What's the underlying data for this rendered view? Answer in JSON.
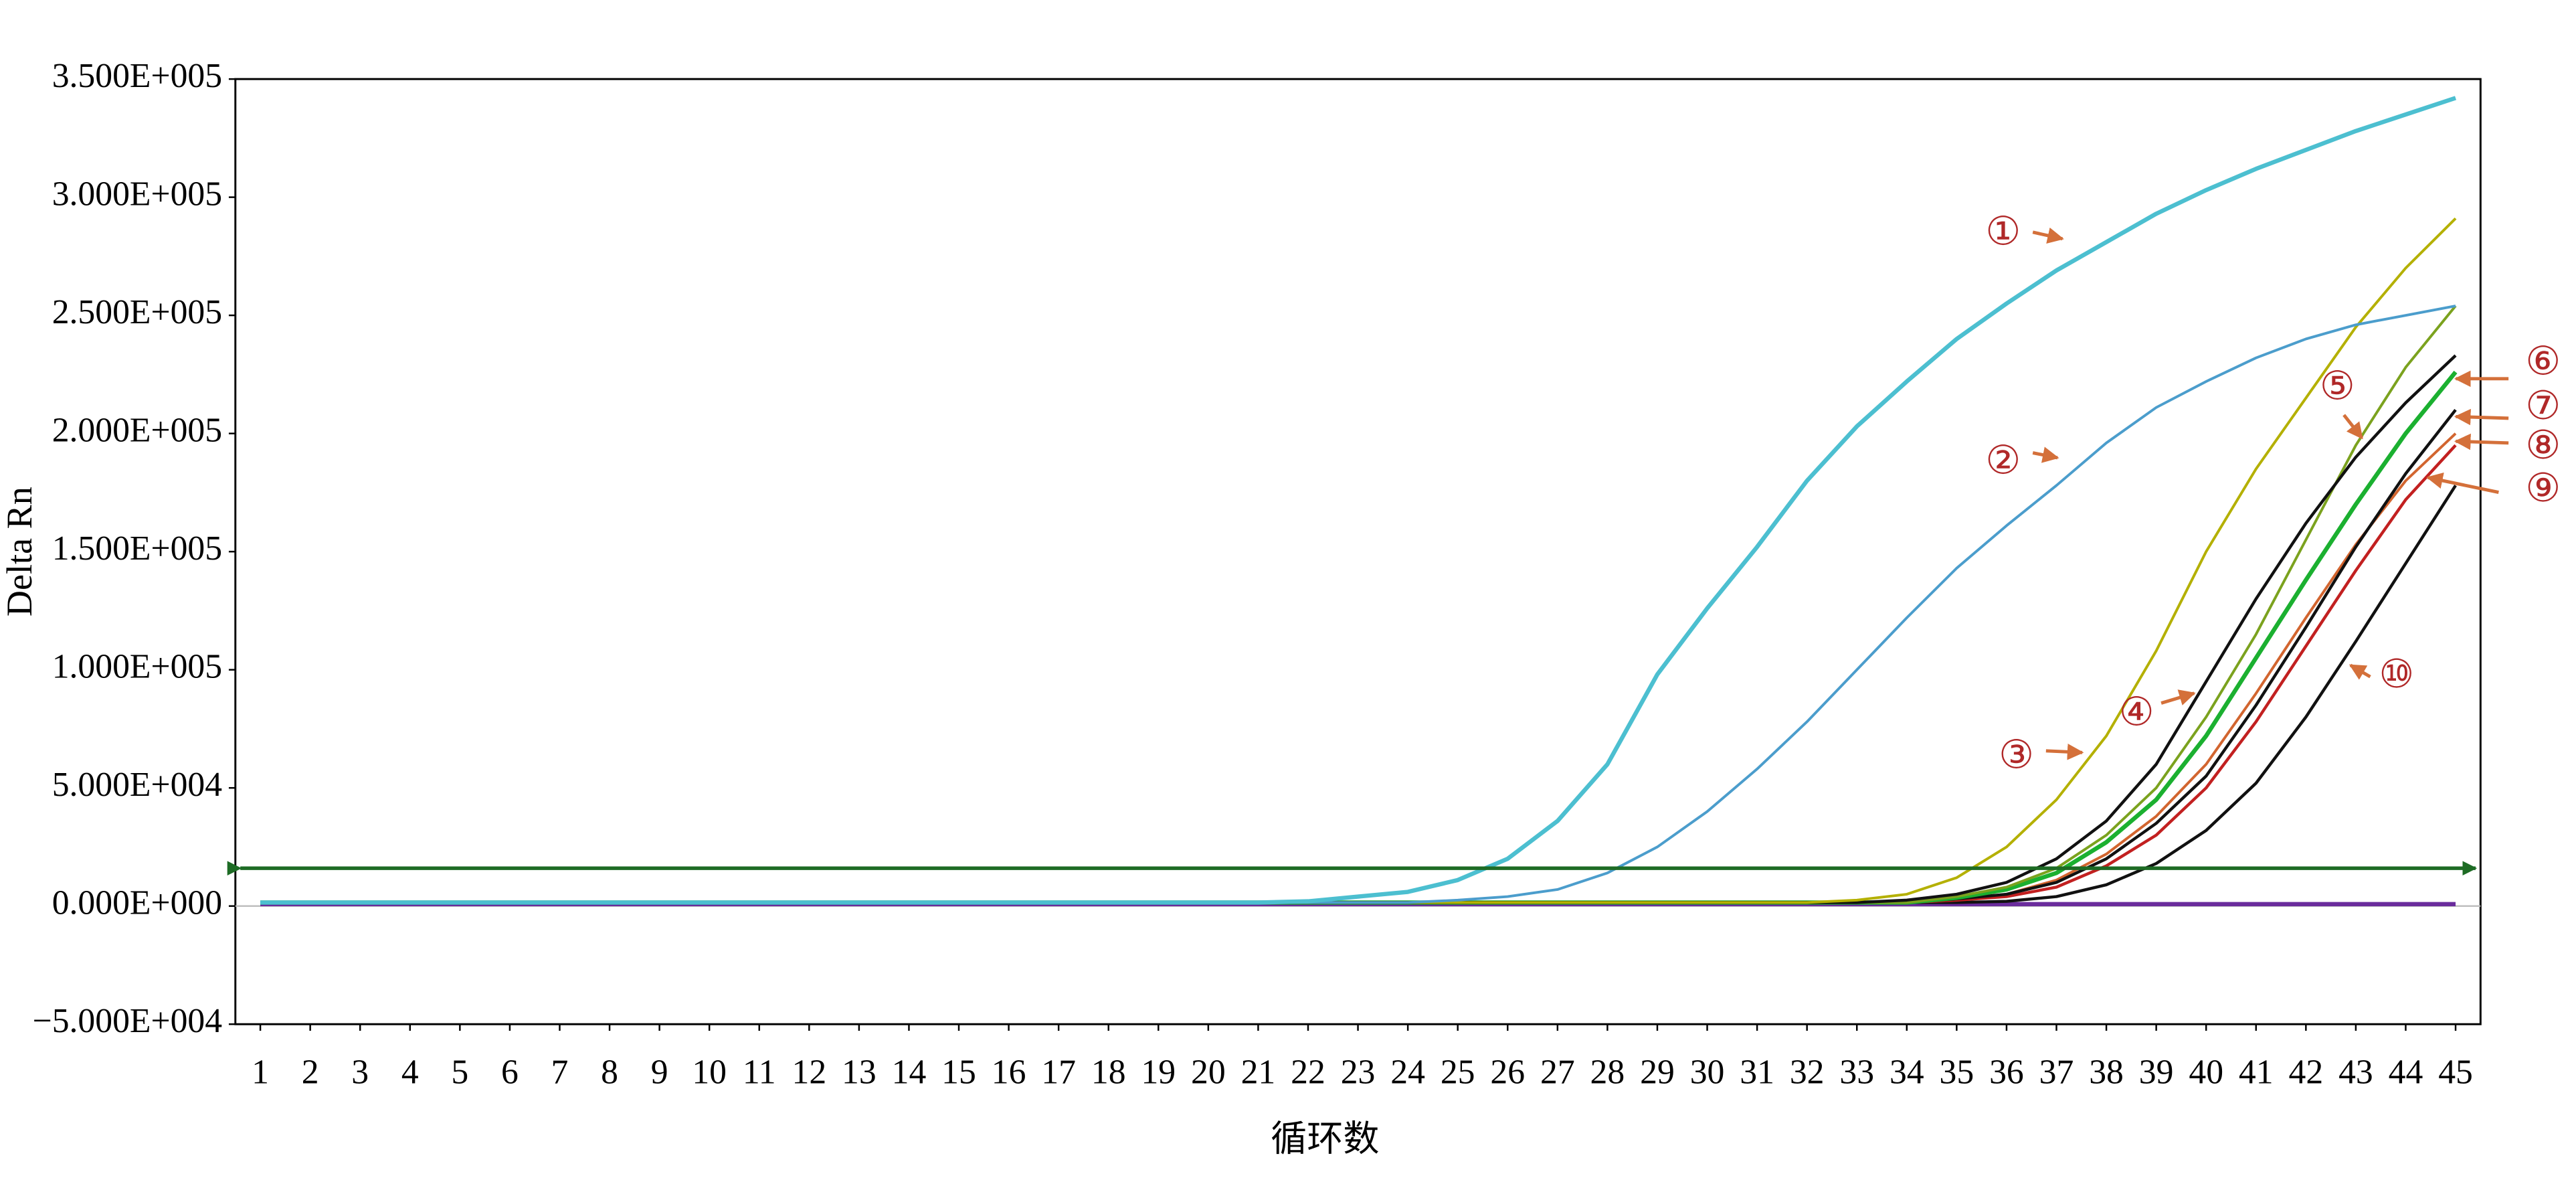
{
  "chart_data": {
    "type": "line",
    "ylabel": "Delta Rn",
    "xlabel": "循环数",
    "x": [
      1,
      2,
      3,
      4,
      5,
      6,
      7,
      8,
      9,
      10,
      11,
      12,
      13,
      14,
      15,
      16,
      17,
      18,
      19,
      20,
      21,
      22,
      23,
      24,
      25,
      26,
      27,
      28,
      29,
      30,
      31,
      32,
      33,
      34,
      35,
      36,
      37,
      38,
      39,
      40,
      41,
      42,
      43,
      44,
      45
    ],
    "xlim": [
      0.5,
      45.5
    ],
    "xticks": [
      1,
      2,
      3,
      4,
      5,
      6,
      7,
      8,
      9,
      10,
      11,
      12,
      13,
      14,
      15,
      16,
      17,
      18,
      19,
      20,
      21,
      22,
      23,
      24,
      25,
      26,
      27,
      28,
      29,
      30,
      31,
      32,
      33,
      34,
      35,
      36,
      37,
      38,
      39,
      40,
      41,
      42,
      43,
      44,
      45
    ],
    "ylim": [
      -50000,
      350000
    ],
    "yticks": [
      {
        "value": -50000,
        "label": "−5.000E+004"
      },
      {
        "value": 0,
        "label": "0.000E+000"
      },
      {
        "value": 50000,
        "label": "5.000E+004"
      },
      {
        "value": 100000,
        "label": "1.000E+005"
      },
      {
        "value": 150000,
        "label": "1.500E+005"
      },
      {
        "value": 200000,
        "label": "2.000E+005"
      },
      {
        "value": 250000,
        "label": "2.500E+005"
      },
      {
        "value": 300000,
        "label": "3.000E+005"
      },
      {
        "value": 350000,
        "label": "3.500E+005"
      }
    ],
    "threshold": 16000,
    "threshold_color": "#1d6b24",
    "series": [
      {
        "name": "①",
        "color": "#4cbfd0",
        "width": 2.6,
        "values": [
          1500,
          1500,
          1500,
          1500,
          1500,
          1500,
          1500,
          1500,
          1500,
          1500,
          1500,
          1500,
          1500,
          1500,
          1500,
          1500,
          1500,
          1500,
          1500,
          1500,
          1500,
          2000,
          4000,
          6000,
          11000,
          20000,
          36000,
          60000,
          98000,
          126000,
          152000,
          180000,
          203000,
          222000,
          240000,
          255000,
          269000,
          281000,
          293000,
          303000,
          312000,
          320000,
          328000,
          335000,
          342000
        ]
      },
      {
        "name": "②",
        "color": "#4b9dcc",
        "width": 1.6,
        "values": [
          1500,
          1500,
          1500,
          1500,
          1500,
          1500,
          1500,
          1500,
          1500,
          1500,
          1500,
          1500,
          1500,
          1500,
          1500,
          1500,
          1500,
          1500,
          1500,
          1500,
          1500,
          1500,
          1500,
          1500,
          2500,
          4000,
          7000,
          14000,
          25000,
          40000,
          58000,
          78000,
          100000,
          122000,
          143000,
          161000,
          178000,
          196000,
          211000,
          222000,
          232000,
          240000,
          246000,
          250000,
          254000
        ]
      },
      {
        "name": "③",
        "color": "#b4b000",
        "width": 1.6,
        "values": [
          1500,
          1500,
          1500,
          1500,
          1500,
          1500,
          1500,
          1500,
          1500,
          1500,
          1500,
          1500,
          1500,
          1500,
          1500,
          1500,
          1500,
          1500,
          1500,
          1500,
          1500,
          1500,
          1500,
          1500,
          1500,
          1500,
          1500,
          1500,
          1500,
          1500,
          1500,
          1500,
          2500,
          5000,
          12000,
          25000,
          45000,
          72000,
          108000,
          150000,
          185000,
          215000,
          245000,
          270000,
          291000
        ]
      },
      {
        "name": "④",
        "color": "#111111",
        "width": 1.8,
        "values": [
          1500,
          1500,
          1500,
          1500,
          1500,
          1500,
          1500,
          1500,
          1500,
          1500,
          1500,
          1500,
          1500,
          1500,
          1500,
          1500,
          1500,
          1500,
          1500,
          1500,
          1500,
          1500,
          1500,
          1500,
          1500,
          1500,
          1500,
          1500,
          1500,
          1500,
          1500,
          1500,
          1500,
          2500,
          5000,
          10000,
          20000,
          36000,
          60000,
          95000,
          130000,
          162000,
          190000,
          213000,
          233000
        ]
      },
      {
        "name": "⑤",
        "color": "#7ba21e",
        "width": 1.6,
        "values": [
          1500,
          1500,
          1500,
          1500,
          1500,
          1500,
          1500,
          1500,
          1500,
          1500,
          1500,
          1500,
          1500,
          1500,
          1500,
          1500,
          1500,
          1500,
          1500,
          1500,
          1500,
          1500,
          1500,
          1500,
          1500,
          1500,
          1500,
          1500,
          1500,
          1500,
          1500,
          1500,
          1500,
          1500,
          4000,
          8000,
          16000,
          30000,
          50000,
          80000,
          115000,
          155000,
          195000,
          228000,
          254000
        ]
      },
      {
        "name": "⑥",
        "color": "#1bb030",
        "width": 2.6,
        "values": [
          1500,
          1500,
          1500,
          1500,
          1500,
          1500,
          1500,
          1500,
          1500,
          1500,
          1500,
          1500,
          1500,
          1500,
          1500,
          1500,
          1500,
          1500,
          1500,
          1500,
          1500,
          1500,
          1500,
          1500,
          1500,
          1500,
          1500,
          1500,
          1500,
          1500,
          1500,
          1500,
          1500,
          1500,
          3500,
          7000,
          14000,
          27000,
          45000,
          72000,
          105000,
          138000,
          170000,
          200000,
          226000
        ]
      },
      {
        "name": "⑦",
        "color": "#111111",
        "width": 1.8,
        "values": [
          1500,
          1500,
          1500,
          1500,
          1500,
          1500,
          1500,
          1500,
          1500,
          1500,
          1500,
          1500,
          1500,
          1500,
          1500,
          1500,
          1500,
          1500,
          1500,
          1500,
          1500,
          1500,
          1500,
          1500,
          1500,
          1500,
          1500,
          1500,
          1500,
          1500,
          1500,
          1500,
          1500,
          1500,
          3000,
          5000,
          10000,
          20000,
          35000,
          55000,
          85000,
          118000,
          152000,
          183000,
          210000
        ]
      },
      {
        "name": "⑧",
        "color": "#d2652f",
        "width": 1.6,
        "values": [
          1500,
          1500,
          1500,
          1500,
          1500,
          1500,
          1500,
          1500,
          1500,
          1500,
          1500,
          1500,
          1500,
          1500,
          1500,
          1500,
          1500,
          1500,
          1500,
          1500,
          1500,
          1500,
          1500,
          1500,
          1500,
          1500,
          1500,
          1500,
          1500,
          1500,
          1500,
          1500,
          1500,
          1500,
          3000,
          5000,
          11000,
          22000,
          38000,
          60000,
          90000,
          122000,
          153000,
          180000,
          200000
        ]
      },
      {
        "name": "⑨",
        "color": "#c22020",
        "width": 1.8,
        "values": [
          1500,
          1500,
          1500,
          1500,
          1500,
          1500,
          1500,
          1500,
          1500,
          1500,
          1500,
          1500,
          1500,
          1500,
          1500,
          1500,
          1500,
          1500,
          1500,
          1500,
          1500,
          1500,
          1500,
          1500,
          1500,
          1500,
          1500,
          1500,
          1500,
          1500,
          1500,
          1500,
          1500,
          1500,
          2500,
          4000,
          8000,
          17000,
          30000,
          50000,
          78000,
          110000,
          142000,
          172000,
          195000
        ]
      },
      {
        "name": "⑩",
        "color": "#111111",
        "width": 1.8,
        "values": [
          1500,
          1500,
          1500,
          1500,
          1500,
          1500,
          1500,
          1500,
          1500,
          1500,
          1500,
          1500,
          1500,
          1500,
          1500,
          1500,
          1500,
          1500,
          1500,
          1500,
          1500,
          1500,
          1500,
          1500,
          1500,
          1500,
          1500,
          1500,
          1500,
          1500,
          1500,
          1500,
          1500,
          1500,
          1500,
          2000,
          4000,
          9000,
          18000,
          32000,
          52000,
          80000,
          112000,
          145000,
          178000
        ]
      },
      {
        "color": "#6a2c9c",
        "width": 2.6,
        "values": [
          800,
          800,
          800,
          800,
          800,
          800,
          800,
          800,
          800,
          800,
          800,
          800,
          800,
          800,
          800,
          800,
          800,
          800,
          800,
          800,
          800,
          800,
          800,
          800,
          800,
          800,
          800,
          800,
          800,
          800,
          800,
          800,
          800,
          800,
          800,
          800,
          800,
          800,
          800,
          800,
          800,
          800,
          800,
          800,
          800
        ]
      }
    ]
  }
}
